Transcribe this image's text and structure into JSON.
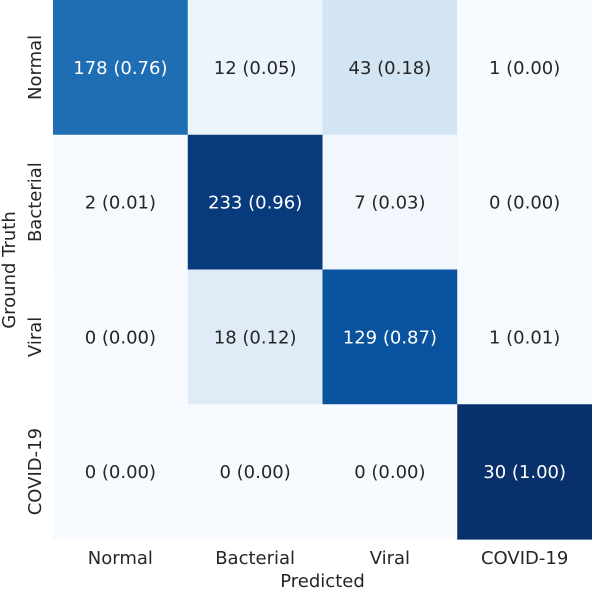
{
  "chart_data": {
    "type": "heatmap",
    "title": "",
    "xlabel": "Predicted",
    "ylabel": "Ground Truth",
    "x_categories": [
      "Normal",
      "Bacterial",
      "Viral",
      "COVID-19"
    ],
    "y_categories": [
      "Normal",
      "Bacterial",
      "Viral",
      "COVID-19"
    ],
    "counts": [
      [
        178,
        12,
        43,
        1
      ],
      [
        2,
        233,
        7,
        0
      ],
      [
        0,
        18,
        129,
        1
      ],
      [
        0,
        0,
        0,
        30
      ]
    ],
    "fractions": [
      [
        0.76,
        0.05,
        0.18,
        0.0
      ],
      [
        0.01,
        0.96,
        0.03,
        0.0
      ],
      [
        0.0,
        0.12,
        0.87,
        0.01
      ],
      [
        0.0,
        0.0,
        0.0,
        1.0
      ]
    ],
    "colormap": "Blues",
    "value_range": [
      0,
      1
    ],
    "colorbar": false,
    "grid": false,
    "colors": {
      "low": "#f7fbff",
      "high": "#08306b",
      "text_dark": "#262626",
      "text_light": "#ffffff"
    }
  }
}
